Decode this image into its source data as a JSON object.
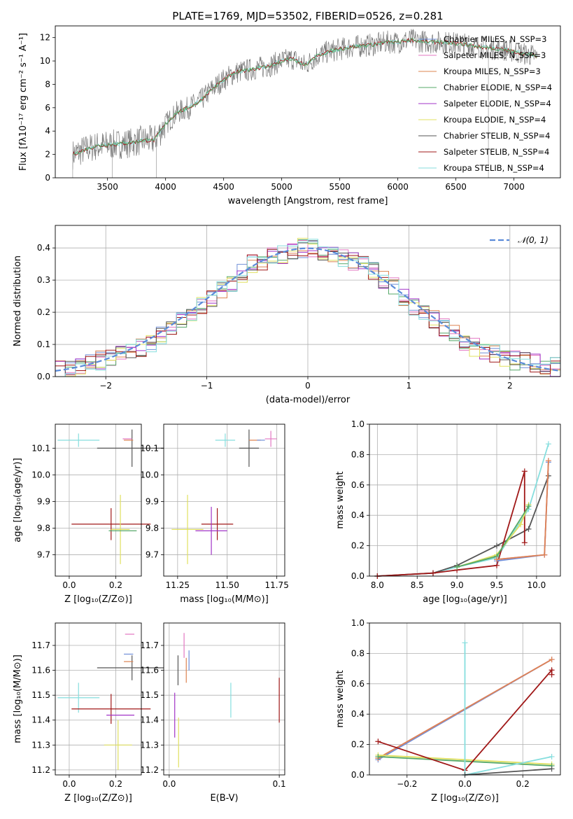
{
  "colors": {
    "chabrier_miles": "#6f8ed8",
    "salpeter_miles": "#e377c2",
    "kroupa_miles": "#dd8452",
    "chabrier_elodie": "#55a868",
    "salpeter_elodie": "#a133c7",
    "kroupa_elodie": "#e0e060",
    "chabrier_stelib": "#555555",
    "salpeter_stelib": "#a01818",
    "kroupa_stelib": "#86dede",
    "normal": "#5b8bd9",
    "grid": "#b0b0b0"
  },
  "chart_data": [
    {
      "type": "line",
      "title": "PLATE=1769, MJD=53502, FIBERID=0526, z=0.281",
      "xlabel": "wavelength [Angstrom, rest frame]",
      "ylabel": "Flux [fλ10⁻¹⁷ erg cm⁻² s⁻¹ A⁻¹]",
      "xlim": [
        3050,
        7400
      ],
      "ylim": [
        0,
        13
      ],
      "x_ticks": [
        "3500",
        "4000",
        "4500",
        "5000",
        "5500",
        "6000",
        "6500",
        "7000"
      ],
      "y_ticks": [
        "0",
        "2",
        "4",
        "6",
        "8",
        "10",
        "12"
      ],
      "grid": false,
      "legend_placement": "right",
      "legend": [
        "Chabrier MILES, N_SSP=3",
        "Salpeter MILES, N_SSP=3",
        "Kroupa MILES, N_SSP=3",
        "Chabrier ELODIE, N_SSP=4",
        "Salpeter ELODIE, N_SSP=4",
        "Kroupa ELODIE, N_SSP=4",
        "Chabrier STELIB, N_SSP=4",
        "Salpeter STELIB, N_SSP=4",
        "Kroupa STELIB, N_SSP=4"
      ],
      "model_continuum": {
        "x": [
          3200,
          3300,
          3400,
          3500,
          3600,
          3700,
          3800,
          3900,
          4000,
          4100,
          4200,
          4300,
          4400,
          4500,
          4600,
          4700,
          4800,
          4900,
          5000,
          5100,
          5200,
          5300,
          5400,
          5500,
          5600,
          5700,
          5800,
          5900,
          6000,
          6100,
          6200,
          6300,
          6400,
          6500,
          6600,
          6700,
          6800,
          6900,
          7000,
          7100,
          7200
        ],
        "y": [
          2.0,
          2.4,
          2.7,
          2.8,
          2.9,
          3.0,
          3.2,
          3.2,
          4.6,
          5.6,
          6.0,
          6.6,
          7.6,
          8.4,
          9.0,
          9.2,
          9.4,
          9.6,
          10.0,
          10.2,
          9.6,
          10.4,
          10.8,
          11.0,
          11.2,
          11.3,
          11.4,
          11.6,
          11.6,
          11.8,
          11.7,
          11.6,
          11.6,
          11.5,
          11.4,
          11.2,
          11.1,
          11.0,
          10.8,
          10.6,
          10.4
        ]
      },
      "data_noise_amplitude": 1.0
    },
    {
      "type": "bar",
      "xlabel": "(data-model)/error",
      "ylabel": "Normed distribution",
      "xlim": [
        -2.5,
        2.5
      ],
      "ylim": [
        0,
        0.47
      ],
      "x_ticks": [
        "−2",
        "−1",
        "0",
        "1",
        "2"
      ],
      "y_ticks": [
        "0.0",
        "0.1",
        "0.2",
        "0.3",
        "0.4"
      ],
      "grid": true,
      "legend": [
        "𝒩(0, 1)"
      ],
      "legend_placement": "top-right",
      "bins": [
        -2.5,
        -2.4,
        -2.3,
        -2.2,
        -2.1,
        -2.0,
        -1.9,
        -1.8,
        -1.7,
        -1.6,
        -1.5,
        -1.4,
        -1.3,
        -1.2,
        -1.1,
        -1.0,
        -0.9,
        -0.8,
        -0.7,
        -0.6,
        -0.5,
        -0.4,
        -0.3,
        -0.2,
        -0.1,
        0.0,
        0.1,
        0.2,
        0.3,
        0.4,
        0.5,
        0.6,
        0.7,
        0.8,
        0.9,
        1.0,
        1.1,
        1.2,
        1.3,
        1.4,
        1.5,
        1.6,
        1.7,
        1.8,
        1.9,
        2.0,
        2.1,
        2.2,
        2.3,
        2.4,
        2.5
      ],
      "histogram_mean": [
        0.02,
        0.03,
        0.035,
        0.04,
        0.05,
        0.055,
        0.065,
        0.08,
        0.09,
        0.105,
        0.125,
        0.15,
        0.18,
        0.2,
        0.22,
        0.24,
        0.27,
        0.29,
        0.32,
        0.35,
        0.36,
        0.37,
        0.38,
        0.39,
        0.4,
        0.4,
        0.39,
        0.38,
        0.37,
        0.36,
        0.35,
        0.33,
        0.3,
        0.28,
        0.25,
        0.22,
        0.2,
        0.18,
        0.15,
        0.13,
        0.11,
        0.09,
        0.08,
        0.07,
        0.06,
        0.05,
        0.045,
        0.04,
        0.035,
        0.03
      ],
      "normal_curve": {
        "mu": 0,
        "sigma": 1
      }
    },
    {
      "type": "scatter",
      "xlabel": "Z [log₁₀(Z/Z⊙)]",
      "ylabel": "age  [log₁₀(age/yr)]",
      "xlim": [
        -0.06,
        0.31
      ],
      "ylim": [
        9.62,
        10.19
      ],
      "x_ticks": [
        {
          "v": 0.0,
          "label": "0.0"
        },
        {
          "v": 0.2,
          "label": "0.2"
        }
      ],
      "y_ticks": [
        {
          "v": 9.7,
          "label": "9.7"
        },
        {
          "v": 9.8,
          "label": "9.8"
        },
        {
          "v": 9.9,
          "label": "9.9"
        },
        {
          "v": 10.0,
          "label": "10.0"
        },
        {
          "v": 10.1,
          "label": "10.1"
        }
      ],
      "grid": true,
      "points": [
        {
          "series": "kroupa_stelib",
          "x": 0.04,
          "y": 10.13,
          "xerr": 0.09,
          "yerr": 0.025
        },
        {
          "series": "chabrier_stelib",
          "x": 0.27,
          "y": 10.1,
          "xerr": 0.15,
          "yerr": 0.07
        },
        {
          "series": "salpeter_miles",
          "x": 0.25,
          "y": 10.135,
          "xerr": 0.02,
          "yerr": 0.0
        },
        {
          "series": "kroupa_miles",
          "x": 0.255,
          "y": 10.13,
          "xerr": 0.02,
          "yerr": 0.0
        },
        {
          "series": "salpeter_stelib",
          "x": 0.18,
          "y": 9.815,
          "xerr": 0.17,
          "yerr": 0.06
        },
        {
          "series": "kroupa_elodie",
          "x": 0.22,
          "y": 9.795,
          "xerr": 0.04,
          "yerr": 0.13
        },
        {
          "series": "chabrier_elodie",
          "x": 0.23,
          "y": 9.79,
          "xerr": 0.06,
          "yerr": 0.0
        }
      ]
    },
    {
      "type": "scatter",
      "xlabel": "mass [log₁₀(M/M⊙)]",
      "ylabel": "",
      "xlim": [
        11.18,
        11.79
      ],
      "ylim": [
        9.62,
        10.19
      ],
      "x_ticks": [
        {
          "v": 11.25,
          "label": "11.25"
        },
        {
          "v": 11.5,
          "label": "11.50"
        },
        {
          "v": 11.75,
          "label": "11.75"
        }
      ],
      "y_ticks": [
        {
          "v": 9.7,
          "label": "9.7"
        },
        {
          "v": 9.8,
          "label": "9.8"
        },
        {
          "v": 9.9,
          "label": "9.9"
        },
        {
          "v": 10.0,
          "label": "10.0"
        },
        {
          "v": 10.1,
          "label": "10.1"
        }
      ],
      "grid": true,
      "points": [
        {
          "series": "kroupa_stelib",
          "x": 11.49,
          "y": 10.13,
          "xerr": 0.05,
          "yerr": 0.025
        },
        {
          "series": "chabrier_stelib",
          "x": 11.61,
          "y": 10.1,
          "xerr": 0.05,
          "yerr": 0.07
        },
        {
          "series": "salpeter_miles",
          "x": 11.72,
          "y": 10.135,
          "xerr": 0.03,
          "yerr": 0.03
        },
        {
          "series": "kroupa_miles",
          "x": 11.64,
          "y": 10.13,
          "xerr": 0.03,
          "yerr": 0.0
        },
        {
          "series": "chabrier_miles",
          "x": 11.67,
          "y": 10.13,
          "xerr": 0.02,
          "yerr": 0.0
        },
        {
          "series": "salpeter_stelib",
          "x": 11.45,
          "y": 9.815,
          "xerr": 0.08,
          "yerr": 0.06
        },
        {
          "series": "salpeter_elodie",
          "x": 11.42,
          "y": 9.79,
          "xerr": 0.08,
          "yerr": 0.09
        },
        {
          "series": "kroupa_elodie",
          "x": 11.3,
          "y": 9.795,
          "xerr": 0.08,
          "yerr": 0.13
        }
      ]
    },
    {
      "type": "line",
      "xlabel": "age  [log₁₀(age/yr)]",
      "ylabel": "mass weight",
      "xlim": [
        7.9,
        10.3
      ],
      "ylim": [
        0,
        1.0
      ],
      "x_ticks": [
        {
          "v": 8.0,
          "label": "8.0"
        },
        {
          "v": 8.5,
          "label": "8.5"
        },
        {
          "v": 9.0,
          "label": "9.0"
        },
        {
          "v": 9.5,
          "label": "9.5"
        },
        {
          "v": 10.0,
          "label": "10.0"
        }
      ],
      "y_ticks": [
        {
          "v": 0,
          "label": "0.0"
        },
        {
          "v": 0.2,
          "label": "0.2"
        },
        {
          "v": 0.4,
          "label": "0.4"
        },
        {
          "v": 0.6,
          "label": "0.6"
        },
        {
          "v": 0.8,
          "label": "0.8"
        },
        {
          "v": 1.0,
          "label": "1.0"
        }
      ],
      "grid": true,
      "series": [
        {
          "series": "kroupa_stelib",
          "x": [
            8.0,
            8.7,
            9.0,
            9.5,
            9.9,
            10.15
          ],
          "y": [
            0.0,
            0.02,
            0.06,
            0.12,
            0.44,
            0.87
          ]
        },
        {
          "series": "chabrier_stelib",
          "x": [
            8.0,
            8.7,
            9.0,
            9.5,
            9.9,
            10.15
          ],
          "y": [
            0.0,
            0.02,
            0.07,
            0.2,
            0.31,
            0.66
          ]
        },
        {
          "series": "salpeter_stelib",
          "x": [
            8.0,
            8.7,
            9.0,
            9.5,
            9.85,
            9.85
          ],
          "y": [
            0.0,
            0.02,
            0.04,
            0.07,
            0.69,
            0.22
          ]
        },
        {
          "series": "kroupa_elodie",
          "x": [
            9.0,
            9.5,
            9.8,
            9.9
          ],
          "y": [
            0.06,
            0.14,
            0.34,
            0.47
          ]
        },
        {
          "series": "chabrier_elodie",
          "x": [
            9.0,
            9.5,
            9.9
          ],
          "y": [
            0.06,
            0.13,
            0.46
          ]
        },
        {
          "series": "chabrier_miles",
          "x": [
            9.5,
            10.1,
            10.15
          ],
          "y": [
            0.1,
            0.14,
            0.75
          ]
        },
        {
          "series": "salpeter_miles",
          "x": [
            9.5,
            10.1,
            10.15
          ],
          "y": [
            0.11,
            0.14,
            0.76
          ]
        },
        {
          "series": "kroupa_miles",
          "x": [
            9.5,
            10.1,
            10.15
          ],
          "y": [
            0.11,
            0.14,
            0.76
          ]
        }
      ]
    },
    {
      "type": "scatter",
      "xlabel": "Z [log₁₀(Z/Z⊙)]",
      "ylabel": "mass [log₁₀(M/M⊙)]",
      "xlim": [
        -0.06,
        0.31
      ],
      "ylim": [
        11.18,
        11.79
      ],
      "x_ticks": [
        {
          "v": 0.0,
          "label": "0.0"
        },
        {
          "v": 0.2,
          "label": "0.2"
        }
      ],
      "y_ticks": [
        {
          "v": 11.2,
          "label": "11.2"
        },
        {
          "v": 11.3,
          "label": "11.3"
        },
        {
          "v": 11.4,
          "label": "11.4"
        },
        {
          "v": 11.5,
          "label": "11.5"
        },
        {
          "v": 11.6,
          "label": "11.6"
        },
        {
          "v": 11.7,
          "label": "11.7"
        }
      ],
      "grid": true,
      "points": [
        {
          "series": "kroupa_stelib",
          "x": 0.04,
          "y": 11.49,
          "xerr": 0.09,
          "yerr": 0.06
        },
        {
          "series": "chabrier_stelib",
          "x": 0.27,
          "y": 11.61,
          "xerr": 0.15,
          "yerr": 0.05
        },
        {
          "series": "salpeter_miles",
          "x": 0.26,
          "y": 11.745,
          "xerr": 0.02,
          "yerr": 0.0
        },
        {
          "series": "chabrier_miles",
          "x": 0.255,
          "y": 11.665,
          "xerr": 0.02,
          "yerr": 0.0
        },
        {
          "series": "kroupa_miles",
          "x": 0.255,
          "y": 11.635,
          "xerr": 0.02,
          "yerr": 0.0
        },
        {
          "series": "salpeter_stelib",
          "x": 0.18,
          "y": 11.445,
          "xerr": 0.17,
          "yerr": 0.06
        },
        {
          "series": "salpeter_elodie",
          "x": 0.22,
          "y": 11.42,
          "xerr": 0.06,
          "yerr": 0.0
        },
        {
          "series": "kroupa_elodie",
          "x": 0.21,
          "y": 11.3,
          "xerr": 0.06,
          "yerr": 0.1
        }
      ]
    },
    {
      "type": "scatter",
      "xlabel": "E(B-V)",
      "ylabel": "",
      "xlim": [
        -0.005,
        0.105
      ],
      "ylim": [
        11.18,
        11.79
      ],
      "x_ticks": [
        {
          "v": 0.0,
          "label": "0.0"
        },
        {
          "v": 0.1,
          "label": "0.1"
        }
      ],
      "y_ticks": [
        {
          "v": 11.2,
          "label": "11.2"
        },
        {
          "v": 11.3,
          "label": "11.3"
        },
        {
          "v": 11.4,
          "label": "11.4"
        },
        {
          "v": 11.5,
          "label": "11.5"
        },
        {
          "v": 11.6,
          "label": "11.6"
        },
        {
          "v": 11.7,
          "label": "11.7"
        }
      ],
      "grid": true,
      "points": [
        {
          "series": "salpeter_miles",
          "x": 0.0135,
          "y": 11.7,
          "xerr": 0.0,
          "yerr": 0.05
        },
        {
          "series": "chabrier_stelib",
          "x": 0.008,
          "y": 11.6,
          "xerr": 0.0,
          "yerr": 0.06
        },
        {
          "series": "chabrier_miles",
          "x": 0.018,
          "y": 11.64,
          "xerr": 0.0,
          "yerr": 0.04
        },
        {
          "series": "kroupa_miles",
          "x": 0.0155,
          "y": 11.6,
          "xerr": 0.0,
          "yerr": 0.05
        },
        {
          "series": "salpeter_elodie",
          "x": 0.005,
          "y": 11.42,
          "xerr": 0.0,
          "yerr": 0.09
        },
        {
          "series": "kroupa_elodie",
          "x": 0.0085,
          "y": 11.31,
          "xerr": 0.0,
          "yerr": 0.1
        },
        {
          "series": "kroupa_stelib",
          "x": 0.056,
          "y": 11.48,
          "xerr": 0.0,
          "yerr": 0.07
        },
        {
          "series": "salpeter_stelib",
          "x": 0.1,
          "y": 11.48,
          "xerr": 0.0,
          "yerr": 0.09
        }
      ]
    },
    {
      "type": "line",
      "xlabel": "Z [log₁₀(Z/Z⊙)]",
      "ylabel": "mass weight",
      "xlim": [
        -0.33,
        0.33
      ],
      "ylim": [
        0,
        1.0
      ],
      "x_ticks": [
        {
          "v": -0.2,
          "label": "−0.2"
        },
        {
          "v": 0.0,
          "label": "0.0"
        },
        {
          "v": 0.2,
          "label": "0.2"
        }
      ],
      "y_ticks": [
        {
          "v": 0,
          "label": "0.0"
        },
        {
          "v": 0.2,
          "label": "0.2"
        },
        {
          "v": 0.4,
          "label": "0.4"
        },
        {
          "v": 0.6,
          "label": "0.6"
        },
        {
          "v": 0.8,
          "label": "0.8"
        },
        {
          "v": 1.0,
          "label": "1.0"
        }
      ],
      "grid": true,
      "series": [
        {
          "series": "chabrier_miles",
          "x": [
            -0.3,
            0.3
          ],
          "y": [
            0.1,
            0.76
          ]
        },
        {
          "series": "salpeter_miles",
          "x": [
            -0.3,
            0.3
          ],
          "y": [
            0.11,
            0.76
          ]
        },
        {
          "series": "kroupa_miles",
          "x": [
            -0.3,
            0.3
          ],
          "y": [
            0.11,
            0.76
          ]
        },
        {
          "series": "kroupa_elodie",
          "x": [
            -0.3,
            0.3
          ],
          "y": [
            0.13,
            0.07
          ]
        },
        {
          "series": "chabrier_elodie",
          "x": [
            -0.3,
            0.3
          ],
          "y": [
            0.12,
            0.06
          ]
        },
        {
          "series": "salpeter_stelib",
          "x": [
            -0.3,
            0.0,
            0.3,
            0.3
          ],
          "y": [
            0.22,
            0.03,
            0.69,
            0.66
          ]
        },
        {
          "series": "kroupa_stelib",
          "x": [
            0.0,
            0.0,
            0.3
          ],
          "y": [
            0.87,
            0.0,
            0.12
          ]
        },
        {
          "series": "chabrier_stelib",
          "x": [
            0.0,
            0.3
          ],
          "y": [
            0.0,
            0.04
          ]
        }
      ]
    }
  ]
}
